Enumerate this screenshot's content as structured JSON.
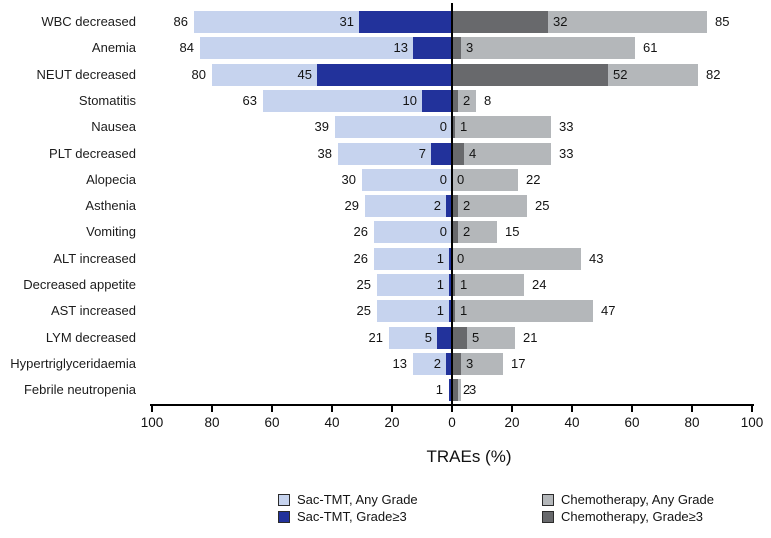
{
  "chart_data": {
    "type": "bar",
    "variant": "diverging-tornado",
    "title": "",
    "xlabel": "TRAEs (%)",
    "ylabel": "",
    "grid": false,
    "legend_position": "bottom",
    "axis_tick_labels": [
      "100",
      "80",
      "60",
      "40",
      "20",
      "0",
      "20",
      "40",
      "60",
      "80",
      "100"
    ],
    "axis_tick_units": [
      -100,
      -80,
      -60,
      -40,
      -20,
      0,
      20,
      40,
      60,
      80,
      100
    ],
    "xlim": [
      -100,
      100
    ],
    "categories": [
      "WBC decreased",
      "Anemia",
      "NEUT decreased",
      "Stomatitis",
      "Nausea",
      "PLT decreased",
      "Alopecia",
      "Asthenia",
      "Vomiting",
      "ALT increased",
      "Decreased appetite",
      "AST increased",
      "LYM decreased",
      "Hypertriglyceridaemia",
      "Febrile neutropenia"
    ],
    "series": [
      {
        "name": "Sac-TMT, Any Grade",
        "side": "left",
        "grade": "any",
        "color": "#c6d3ee",
        "values": [
          86,
          84,
          80,
          63,
          39,
          38,
          30,
          29,
          26,
          26,
          25,
          25,
          21,
          13,
          1
        ],
        "value_labels": [
          "86",
          "84",
          "80",
          "63",
          "39",
          "38",
          "30",
          "29",
          "26",
          "26",
          "25",
          "25",
          "21",
          "13",
          "1"
        ]
      },
      {
        "name": "Sac-TMT, Grade≥3",
        "side": "left",
        "grade": "grade3",
        "color": "#22329b",
        "values": [
          31,
          13,
          45,
          10,
          0,
          7,
          0,
          2,
          0,
          1,
          1,
          1,
          5,
          2,
          1
        ],
        "value_labels": [
          "31",
          "13",
          "45",
          "10",
          "0",
          "7",
          "0",
          "2",
          "0",
          "1",
          "1",
          "1",
          "5",
          "2",
          ""
        ]
      },
      {
        "name": "Chemotherapy, Grade≥3",
        "side": "right",
        "grade": "grade3",
        "color": "#68696c",
        "values": [
          32,
          3,
          52,
          2,
          1,
          4,
          0,
          2,
          2,
          0,
          1,
          1,
          5,
          3,
          2
        ],
        "value_labels": [
          "32",
          "3",
          "52",
          "2",
          "1",
          "4",
          "0",
          "2",
          "2",
          "0",
          "1",
          "1",
          "5",
          "3",
          "2"
        ]
      },
      {
        "name": "Chemotherapy, Any Grade",
        "side": "right",
        "grade": "any",
        "color": "#b4b7ba",
        "values": [
          85,
          61,
          82,
          8,
          33,
          33,
          22,
          25,
          15,
          43,
          24,
          47,
          21,
          17,
          3
        ],
        "value_labels": [
          "85",
          "61",
          "82",
          "8",
          "33",
          "33",
          "22",
          "25",
          "15",
          "43",
          "24",
          "47",
          "21",
          "17",
          "3"
        ]
      }
    ],
    "legend": [
      {
        "label": "Sac-TMT, Any Grade",
        "color": "#c6d3ee"
      },
      {
        "label": "Sac-TMT, Grade≥3",
        "color": "#22329b"
      },
      {
        "label": "Chemotherapy, Any Grade",
        "color": "#b4b7ba"
      },
      {
        "label": "Chemotherapy, Grade≥3",
        "color": "#68696c"
      }
    ]
  }
}
